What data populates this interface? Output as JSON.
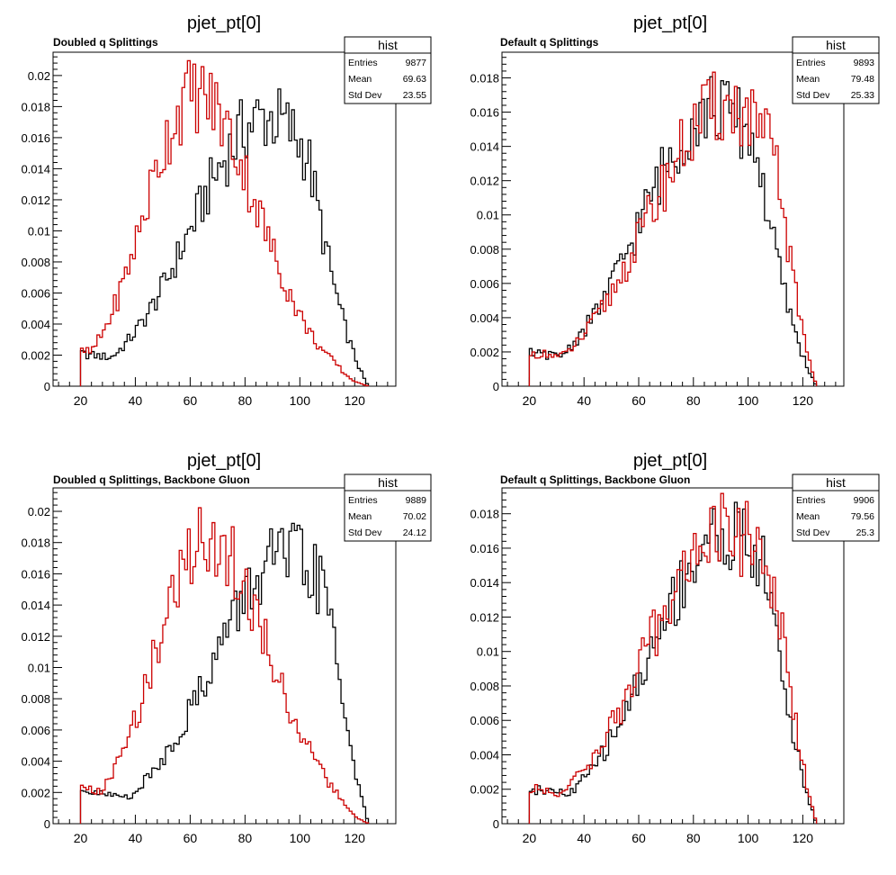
{
  "chart_data": [
    {
      "type": "histogram",
      "title": "pjet_pt[0]",
      "subtitle": "Doubled q Splittings",
      "stats": {
        "name": "hist",
        "entries": "9877",
        "mean": "69.63",
        "std_dev": "23.55"
      },
      "xlim": [
        10,
        135
      ],
      "ylim": [
        0,
        0.0215
      ],
      "xticks": [
        "20",
        "40",
        "60",
        "80",
        "100",
        "120"
      ],
      "yticks": [
        "0",
        "0.002",
        "0.004",
        "0.006",
        "0.008",
        "0.01",
        "0.012",
        "0.014",
        "0.016",
        "0.018",
        "0.02"
      ],
      "series": [
        {
          "color": "#000000",
          "shape": "right",
          "peak": 0.0173,
          "center": 88,
          "low": 20,
          "high": 125
        },
        {
          "color": "#cc0000",
          "shape": "left",
          "peak": 0.0188,
          "center": 62,
          "low": 20,
          "high": 125
        }
      ]
    },
    {
      "type": "histogram",
      "title": "pjet_pt[0]",
      "subtitle": "Default q Splittings",
      "stats": {
        "name": "hist",
        "entries": "9893",
        "mean": "79.48",
        "std_dev": "25.33"
      },
      "xlim": [
        10,
        135
      ],
      "ylim": [
        0,
        0.0195
      ],
      "xticks": [
        "20",
        "40",
        "60",
        "80",
        "100",
        "120"
      ],
      "yticks": [
        "0",
        "0.002",
        "0.004",
        "0.006",
        "0.008",
        "0.01",
        "0.012",
        "0.014",
        "0.016",
        "0.018"
      ],
      "series": [
        {
          "color": "#000000",
          "shape": "right",
          "peak": 0.0162,
          "center": 88,
          "low": 20,
          "high": 125
        },
        {
          "color": "#cc0000",
          "shape": "right2",
          "peak": 0.0163,
          "center": 92,
          "low": 20,
          "high": 125
        }
      ]
    },
    {
      "type": "histogram",
      "title": "pjet_pt[0]",
      "subtitle": "Doubled q Splittings, Backbone Gluon",
      "stats": {
        "name": "hist",
        "entries": "9889",
        "mean": "70.02",
        "std_dev": "24.12"
      },
      "xlim": [
        10,
        135
      ],
      "ylim": [
        0,
        0.0215
      ],
      "xticks": [
        "20",
        "40",
        "60",
        "80",
        "100",
        "120"
      ],
      "yticks": [
        "0",
        "0.002",
        "0.004",
        "0.006",
        "0.008",
        "0.01",
        "0.012",
        "0.014",
        "0.016",
        "0.018",
        "0.02"
      ],
      "series": [
        {
          "color": "#000000",
          "shape": "right",
          "peak": 0.017,
          "center": 95,
          "low": 20,
          "high": 125
        },
        {
          "color": "#cc0000",
          "shape": "left",
          "peak": 0.0183,
          "center": 66,
          "low": 20,
          "high": 125
        }
      ]
    },
    {
      "type": "histogram",
      "title": "pjet_pt[0]",
      "subtitle": "Default q Splittings, Backbone Gluon",
      "stats": {
        "name": "hist",
        "entries": "9906",
        "mean": "79.56",
        "std_dev": "25.3"
      },
      "xlim": [
        10,
        135
      ],
      "ylim": [
        0,
        0.0195
      ],
      "xticks": [
        "20",
        "40",
        "60",
        "80",
        "100",
        "120"
      ],
      "yticks": [
        "0",
        "0.002",
        "0.004",
        "0.006",
        "0.008",
        "0.01",
        "0.012",
        "0.014",
        "0.016",
        "0.018"
      ],
      "series": [
        {
          "color": "#000000",
          "shape": "right",
          "peak": 0.0168,
          "center": 92,
          "low": 20,
          "high": 125
        },
        {
          "color": "#cc0000",
          "shape": "right2",
          "peak": 0.017,
          "center": 92,
          "low": 20,
          "high": 125
        }
      ]
    }
  ]
}
